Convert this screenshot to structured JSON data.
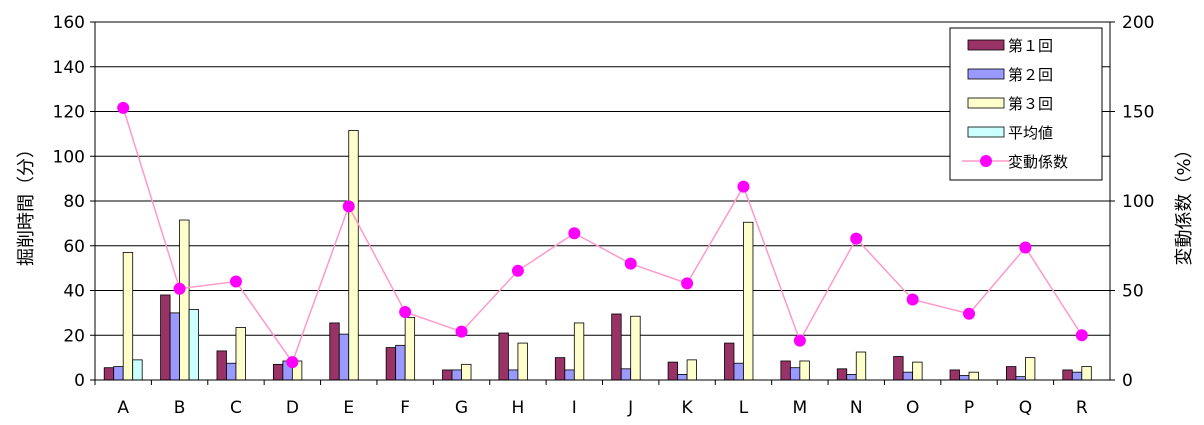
{
  "chart_data": {
    "type": "bar",
    "categories": [
      "A",
      "B",
      "C",
      "D",
      "E",
      "F",
      "G",
      "H",
      "I",
      "J",
      "K",
      "L",
      "M",
      "N",
      "O",
      "P",
      "Q",
      "R"
    ],
    "ylabel": "掘削時間（分）",
    "y2label": "変動係数（%）",
    "ylim": [
      0,
      160
    ],
    "yticks": [
      0,
      20,
      40,
      60,
      80,
      100,
      120,
      140,
      160
    ],
    "y2lim": [
      0,
      200
    ],
    "y2ticks": [
      0,
      50,
      100,
      150,
      200
    ],
    "grid": true,
    "legend_position": "top-right",
    "series": [
      {
        "name": "第１回",
        "kind": "bar",
        "axis": "left",
        "color": "#993366",
        "values": [
          5.5,
          38,
          13,
          7,
          25.5,
          14.5,
          4.5,
          21,
          10,
          29.5,
          8,
          16.5,
          8.5,
          5,
          10.5,
          4.5,
          6,
          4.5
        ]
      },
      {
        "name": "第２回",
        "kind": "bar",
        "axis": "left",
        "color": "#9999FF",
        "values": [
          6,
          30,
          7.5,
          8.5,
          20.5,
          15.5,
          4.5,
          4.5,
          4.5,
          5,
          2.5,
          7.5,
          5.5,
          2.5,
          3.5,
          2,
          1.5,
          3.5
        ]
      },
      {
        "name": "第３回",
        "kind": "bar",
        "axis": "left",
        "color": "#FFFFCC",
        "values": [
          57,
          71.5,
          23.5,
          8.5,
          111.5,
          28,
          7,
          16.5,
          25.5,
          28.5,
          9,
          70.5,
          8.5,
          12.5,
          8,
          3.5,
          10,
          6
        ]
      },
      {
        "name": "平均値",
        "kind": "bar",
        "axis": "left",
        "color": "#CCFFFF",
        "values": [
          9,
          31.5,
          null,
          null,
          null,
          null,
          null,
          null,
          null,
          null,
          null,
          null,
          null,
          null,
          null,
          null,
          null,
          null
        ]
      },
      {
        "name": "変動係数",
        "kind": "line",
        "axis": "right",
        "color": "#FF99CC",
        "marker_color": "#FF00FF",
        "values": [
          152,
          51,
          55,
          10,
          97,
          38,
          27,
          61,
          82,
          65,
          54,
          108,
          22,
          79,
          45,
          37,
          74,
          25
        ]
      }
    ]
  }
}
